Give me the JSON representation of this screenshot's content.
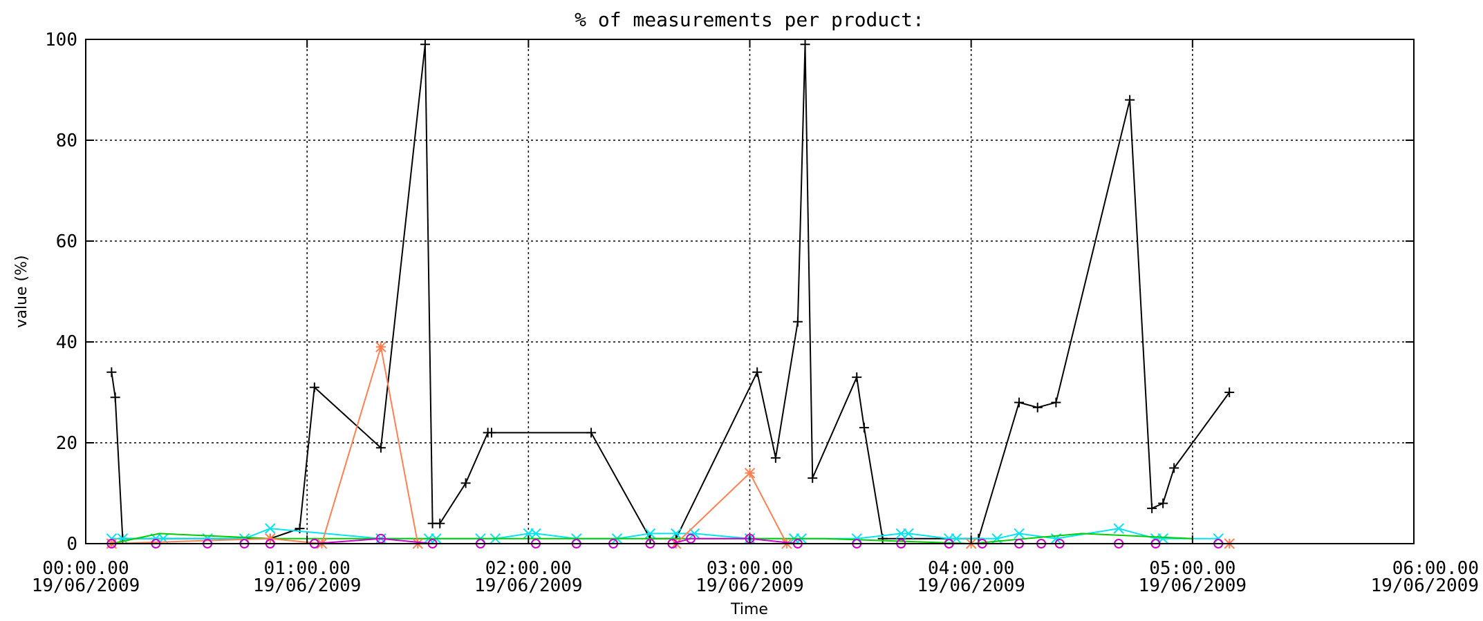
{
  "chart_data": {
    "type": "line",
    "title": "% of measurements per product:",
    "xlabel": "Time",
    "ylabel": "value (%)",
    "ylim": [
      0,
      100
    ],
    "xlim": [
      "00:00.00 19/06/2009",
      "06:00.00 19/06/2009"
    ],
    "grid": true,
    "legend": "none",
    "x_unit": "minutes after 00:00.00 19/06/2009",
    "xticks": [
      {
        "t": 0,
        "time": "00:00.00",
        "date": "19/06/2009"
      },
      {
        "t": 60,
        "time": "01:00.00",
        "date": "19/06/2009"
      },
      {
        "t": 120,
        "time": "02:00.00",
        "date": "19/06/2009"
      },
      {
        "t": 180,
        "time": "03:00.00",
        "date": "19/06/2009"
      },
      {
        "t": 240,
        "time": "04:00.00",
        "date": "19/06/2009"
      },
      {
        "t": 300,
        "time": "05:00.00",
        "date": "19/06/2009"
      },
      {
        "t": 360,
        "time": "06:00.00",
        "date": "19/06/2009"
      }
    ],
    "yticks": [
      "0",
      "20",
      "40",
      "60",
      "80",
      "100"
    ],
    "series": [
      {
        "color": "#000000",
        "marker": "plus",
        "x": [
          7,
          8,
          10,
          50,
          58,
          62,
          80,
          92,
          94,
          96,
          103,
          109,
          110,
          137,
          153,
          160,
          182,
          187,
          193,
          195,
          197,
          209,
          211,
          216,
          242,
          253,
          258,
          263,
          283,
          289,
          292,
          295,
          310
        ],
        "y": [
          34,
          29,
          1,
          1,
          3,
          31,
          19,
          99,
          4,
          4,
          12,
          22,
          22,
          22,
          1,
          1,
          34,
          17,
          44,
          99,
          13,
          33,
          23,
          1,
          1,
          28,
          27,
          28,
          88,
          7,
          8,
          15,
          30
        ]
      },
      {
        "color": "#00e5ee",
        "marker": "x",
        "x": [
          7,
          10,
          19,
          21,
          33,
          43,
          50,
          80,
          93,
          95,
          107,
          111,
          120,
          122,
          133,
          144,
          153,
          160,
          165,
          180,
          192,
          194,
          209,
          221,
          223,
          234,
          236,
          247,
          253,
          263,
          280,
          290,
          292,
          307
        ],
        "y": [
          1,
          1,
          1,
          1,
          1,
          1,
          3,
          1,
          1,
          1,
          1,
          1,
          2,
          2,
          1,
          1,
          2,
          2,
          2,
          1,
          1,
          1,
          1,
          2,
          2,
          1,
          1,
          1,
          2,
          1,
          3,
          1,
          1,
          1
        ]
      },
      {
        "color": "#00cc00",
        "marker": "none",
        "x": [
          7,
          20,
          50,
          100,
          160,
          200,
          240,
          270,
          300
        ],
        "y": [
          0,
          2,
          1,
          1,
          1,
          1,
          0,
          2,
          1
        ]
      },
      {
        "color": "#ff7f50",
        "marker": "asterisk",
        "x": [
          7,
          50,
          64,
          80,
          90,
          160,
          180,
          190,
          240,
          310
        ],
        "y": [
          0,
          1,
          0,
          39,
          0,
          0,
          14,
          0,
          0,
          0
        ]
      },
      {
        "color": "#cc00cc",
        "marker": "circle",
        "x": [
          7,
          19,
          33,
          43,
          50,
          62,
          80,
          94,
          107,
          122,
          133,
          143,
          153,
          159,
          164,
          180,
          193,
          209,
          221,
          234,
          243,
          253,
          259,
          264,
          280,
          290,
          307
        ],
        "y": [
          0,
          0,
          0,
          0,
          0,
          0,
          1,
          0,
          0,
          0,
          0,
          0,
          0,
          0,
          1,
          1,
          0,
          0,
          0,
          0,
          0,
          0,
          0,
          0,
          0,
          0,
          0
        ]
      }
    ]
  }
}
